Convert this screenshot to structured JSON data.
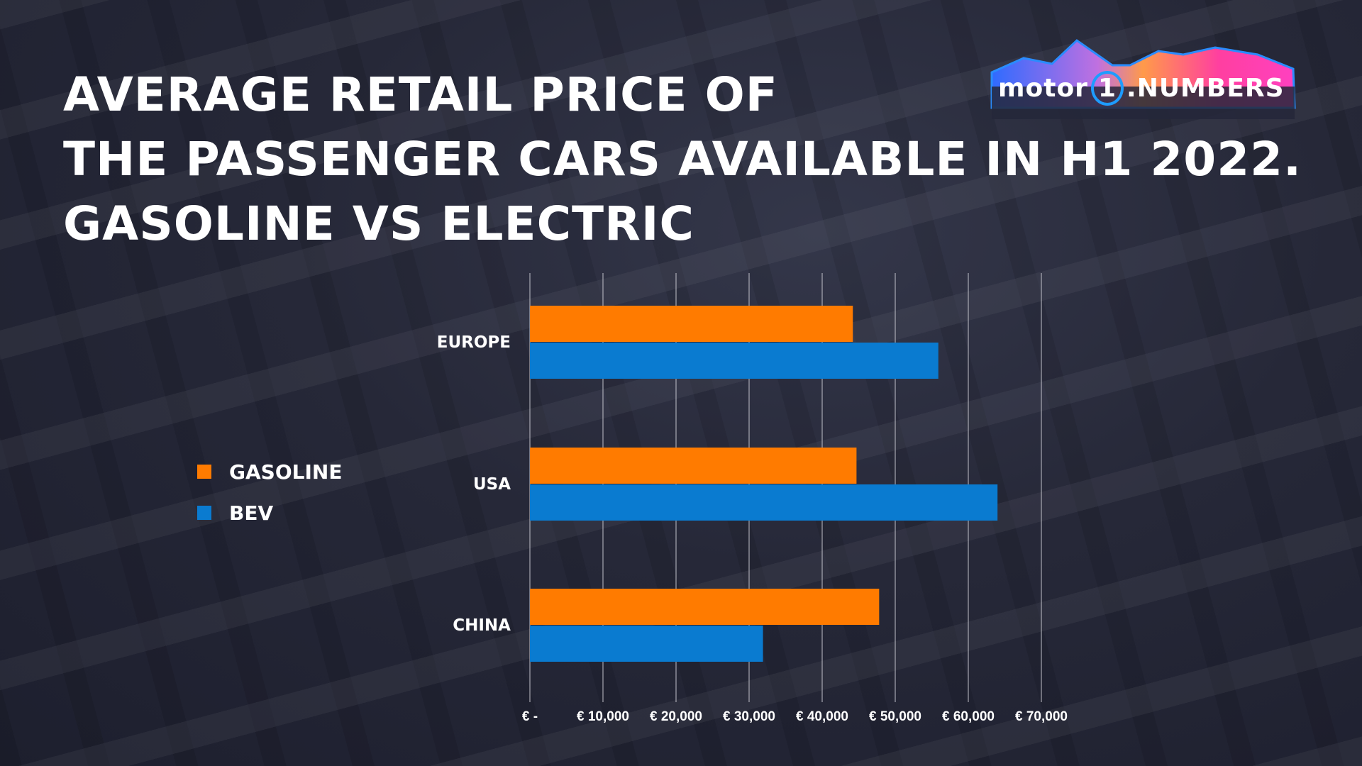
{
  "title": {
    "lines": [
      "AVERAGE RETAIL PRICE OF",
      "THE PASSENGER CARS AVAILABLE IN H1 2022.",
      "GASOLINE VS ELECTRIC"
    ]
  },
  "logo": {
    "text": "motor1.NUMBERS"
  },
  "colors": {
    "gasoline": "#ff7b00",
    "bev": "#0a7bd0",
    "grid": "#c8c8d0"
  },
  "chart_data": {
    "type": "bar",
    "orientation": "horizontal",
    "categories": [
      "EUROPE",
      "USA",
      "CHINA"
    ],
    "series": [
      {
        "name": "GASOLINE",
        "values": [
          44200,
          44700,
          47800
        ]
      },
      {
        "name": "BEV",
        "values": [
          55900,
          64000,
          31900
        ]
      }
    ],
    "xlim": [
      0,
      70000
    ],
    "xticks": [
      0,
      10000,
      20000,
      30000,
      40000,
      50000,
      60000,
      70000
    ],
    "xtick_labels": [
      "€ -",
      "€ 10,000",
      "€ 20,000",
      "€ 30,000",
      "€ 40,000",
      "€ 50,000",
      "€ 60,000",
      "€ 70,000"
    ],
    "grid": "vertical",
    "legend_position": "left"
  }
}
